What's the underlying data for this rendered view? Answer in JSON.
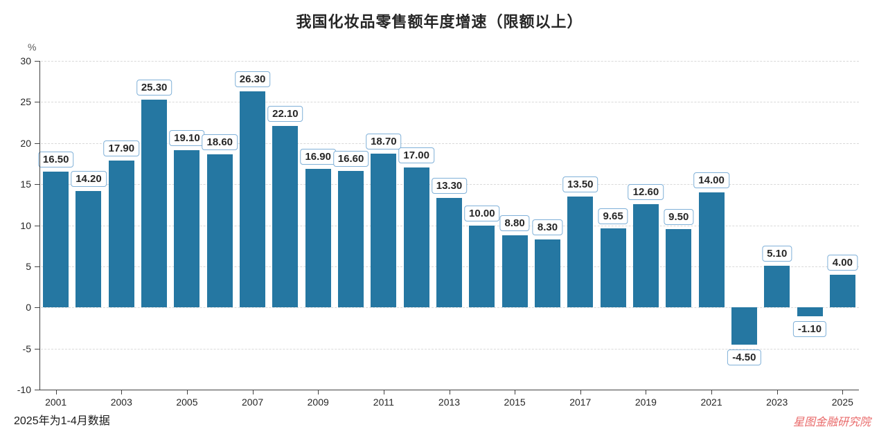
{
  "title": "我国化妆品零售额年度增速（限额以上）",
  "unit_label": "%",
  "footnote": "2025年为1-4月数据",
  "watermark": "星图金融研究院",
  "colors": {
    "bar": "#2577a2",
    "value_label_border": "#7fb0d8",
    "axis": "#404040",
    "gridline": "#d9d9d9",
    "watermark_text": "#e96a6a"
  },
  "chart_data": {
    "type": "bar",
    "title": "我国化妆品零售额年度增速（限额以上）",
    "xlabel": "",
    "ylabel": "%",
    "ylim": [
      -10,
      30
    ],
    "y_ticks": [
      30,
      25,
      20,
      15,
      10,
      5,
      0,
      -5,
      -10
    ],
    "grid": "horizontal-dashed",
    "legend": "none",
    "value_labels_shown": true,
    "categories": [
      2001,
      2002,
      2003,
      2004,
      2005,
      2006,
      2007,
      2008,
      2009,
      2010,
      2011,
      2012,
      2013,
      2014,
      2015,
      2016,
      2017,
      2018,
      2019,
      2020,
      2021,
      2022,
      2023,
      2024,
      2025
    ],
    "values": [
      16.5,
      14.2,
      17.9,
      25.3,
      19.1,
      18.6,
      26.3,
      22.1,
      16.9,
      16.6,
      18.7,
      17.0,
      13.3,
      10.0,
      8.8,
      8.3,
      13.5,
      9.65,
      12.6,
      9.5,
      14.0,
      -4.5,
      5.1,
      -1.1,
      4.0
    ],
    "x_tick_years": [
      2001,
      2003,
      2005,
      2007,
      2009,
      2011,
      2013,
      2015,
      2017,
      2019,
      2021,
      2023,
      2025
    ]
  }
}
